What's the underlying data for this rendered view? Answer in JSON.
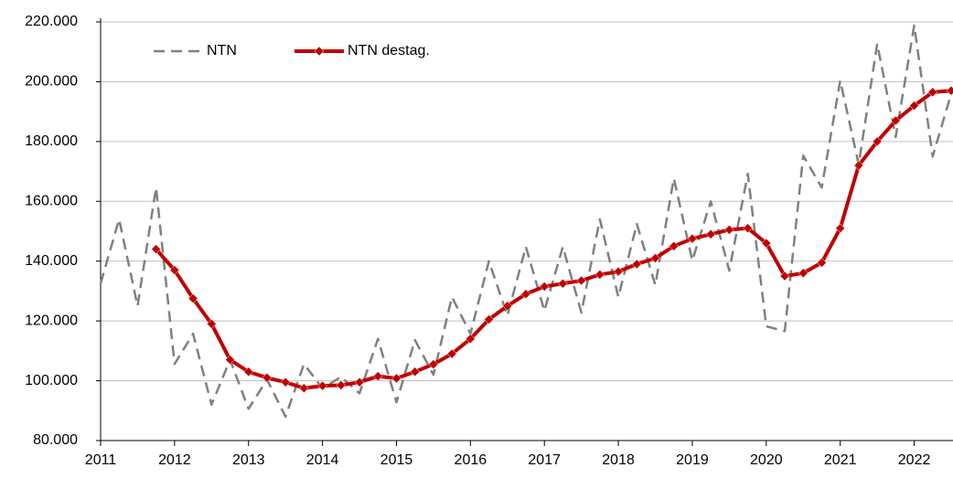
{
  "chart_data": {
    "type": "line",
    "categories": [
      "2011",
      null,
      null,
      null,
      "2012",
      null,
      null,
      null,
      "2013",
      null,
      null,
      null,
      "2014",
      null,
      null,
      null,
      "2015",
      null,
      null,
      null,
      "2016",
      null,
      null,
      null,
      "2017",
      null,
      null,
      null,
      "2018",
      null,
      null,
      null,
      "2019",
      null,
      null,
      null,
      "2020",
      null,
      null,
      null,
      "2021",
      null,
      null,
      null,
      "2022",
      null,
      null
    ],
    "series": [
      {
        "name": "NTN",
        "color": "#808080",
        "dashed": true,
        "values": [
          132500,
          154000,
          125000,
          164600,
          105600,
          115700,
          92000,
          107000,
          90600,
          100400,
          88000,
          105600,
          97400,
          101300,
          95800,
          114000,
          92800,
          113600,
          102000,
          128000,
          115700,
          140000,
          121800,
          144800,
          123400,
          144800,
          122800,
          154000,
          128000,
          152400,
          132000,
          167700,
          140200,
          160000,
          136800,
          169200,
          118200,
          116600,
          175300,
          164600,
          200400,
          172300,
          212700,
          181500,
          218800,
          175000,
          196000
        ]
      },
      {
        "name": "NTN destag.",
        "color": "#c00000",
        "markers": true,
        "values": [
          null,
          null,
          null,
          144000,
          137000,
          127500,
          119000,
          107000,
          103000,
          101000,
          99500,
          97500,
          98300,
          98500,
          99500,
          101500,
          100800,
          103000,
          105500,
          109000,
          114000,
          120500,
          125000,
          129000,
          131500,
          132500,
          133500,
          135500,
          136500,
          139000,
          141000,
          145000,
          147500,
          149000,
          150500,
          151000,
          146000,
          135000,
          136000,
          139500,
          151000,
          172000,
          180000,
          187000,
          192000,
          196500,
          197000
        ]
      }
    ],
    "ylim": [
      80000,
      220000
    ],
    "yticks": [
      {
        "value": 80000,
        "label": "80.000"
      },
      {
        "value": 100000,
        "label": "100.000"
      },
      {
        "value": 120000,
        "label": "120.000"
      },
      {
        "value": 140000,
        "label": "140.000"
      },
      {
        "value": 160000,
        "label": "160.000"
      },
      {
        "value": 180000,
        "label": "180.000"
      },
      {
        "value": 200000,
        "label": "200.000"
      },
      {
        "value": 220000,
        "label": "220.000"
      }
    ],
    "grid": true
  }
}
